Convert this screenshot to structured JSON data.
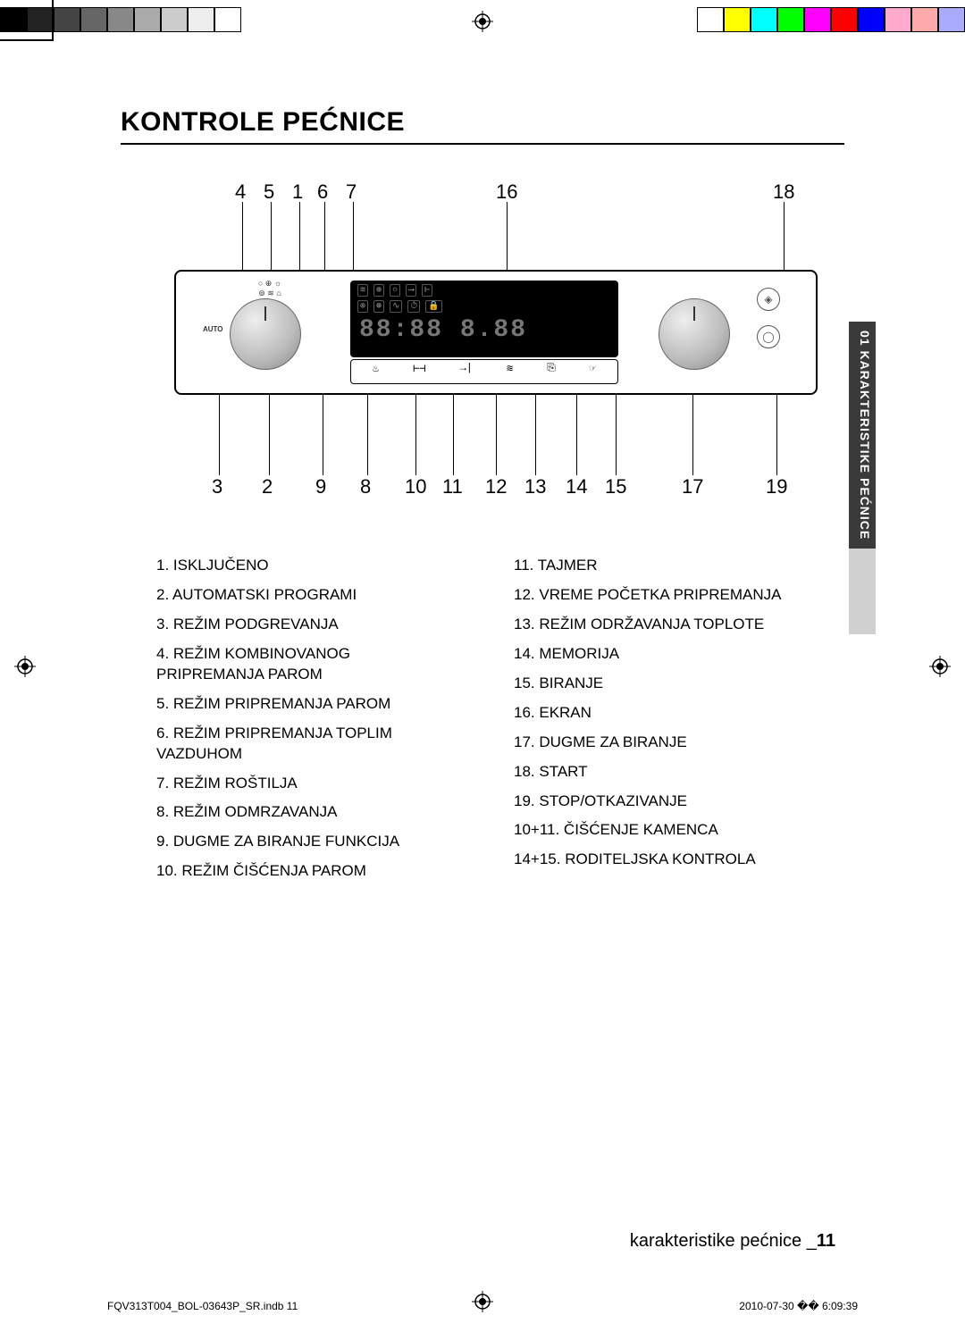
{
  "title": "KONTROLE PEĆNICE",
  "side_tab": "01 KARAKTERISTIKE PEĆNICE",
  "footer": {
    "label": "karakteristike pećnice _",
    "page": "11"
  },
  "print_footer": {
    "left": "FQV313T004_BOL-03643P_SR.indb   11",
    "right": "2010-07-30   �� 6:09:39"
  },
  "callouts_top": {
    "c4": "4",
    "c5": "5",
    "c1": "1",
    "c6": "6",
    "c7": "7",
    "c16": "16",
    "c18": "18"
  },
  "callouts_bot": {
    "c3": "3",
    "c2": "2",
    "c9": "9",
    "c8": "8",
    "c10": "10",
    "c11": "11",
    "c12": "12",
    "c13": "13",
    "c14": "14",
    "c15": "15",
    "c17": "17",
    "c19": "19"
  },
  "lcd_digits": "88:88  8.88",
  "auto_label": "AUTO",
  "legend_left": [
    "1.  ISKLJUČENO",
    "2.  AUTOMATSKI PROGRAMI",
    "3.  REŽIM PODGREVANJA",
    "4.  REŽIM KOMBINOVANOG PRIPREMANJA PAROM",
    "5.  REŽIM PRIPREMANJA PAROM",
    "6.  REŽIM PRIPREMANJA TOPLIM VAZDUHOM",
    "7.  REŽIM ROŠTILJA",
    "8.  REŽIM ODMRZAVANJA",
    "9.  DUGME ZA BIRANJE FUNKCIJA",
    "10.  REŽIM ČIŠĆENJA PAROM"
  ],
  "legend_right": [
    "11.  TAJMER",
    "12.  VREME POČETKA PRIPREMANJA",
    "13.  REŽIM ODRŽAVANJA TOPLOTE",
    "14.  MEMORIJA",
    "15.  BIRANJE",
    "16.  EKRAN",
    "17.  DUGME ZA BIRANJE",
    "18.  START",
    "19.  STOP/OTKAZIVANJE",
    "10+11. ČIŠĆENJE KAMENCA",
    "14+15. RODITELJSKA KONTROLA"
  ],
  "colorbar_left": [
    "#000",
    "#222",
    "#444",
    "#666",
    "#888",
    "#aaa",
    "#ccc",
    "#eee",
    "#fff"
  ],
  "colorbar_right": [
    "#fff",
    "#ff0",
    "#0ff",
    "#0f0",
    "#f0f",
    "#f00",
    "#00f",
    "#fac",
    "#faa",
    "#aaf"
  ]
}
